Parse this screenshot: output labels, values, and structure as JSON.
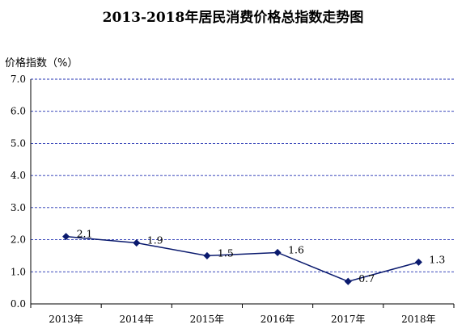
{
  "chart_data": {
    "type": "line",
    "title": "2013-2018年居民消费价格总指数走势图",
    "ylabel": "价格指数（%）",
    "xlabel": "",
    "categories": [
      "2013年",
      "2014年",
      "2015年",
      "2016年",
      "2017年",
      "2018年"
    ],
    "series": [
      {
        "values": [
          2.1,
          1.9,
          1.5,
          1.6,
          0.7,
          1.3
        ]
      }
    ],
    "data_labels": [
      "2.1",
      "1.9",
      "1.5",
      "1.6",
      "0.7",
      "1.3"
    ],
    "ylim": [
      0,
      7
    ],
    "yticks": [
      "0.0",
      "1.0",
      "2.0",
      "3.0",
      "4.0",
      "5.0",
      "6.0",
      "7.0"
    ],
    "grid": "horizontal dashed",
    "legend": "none",
    "colors": {
      "line": "#0a1a6e",
      "grid": "#1f2fb0",
      "axis": "#000000"
    }
  }
}
